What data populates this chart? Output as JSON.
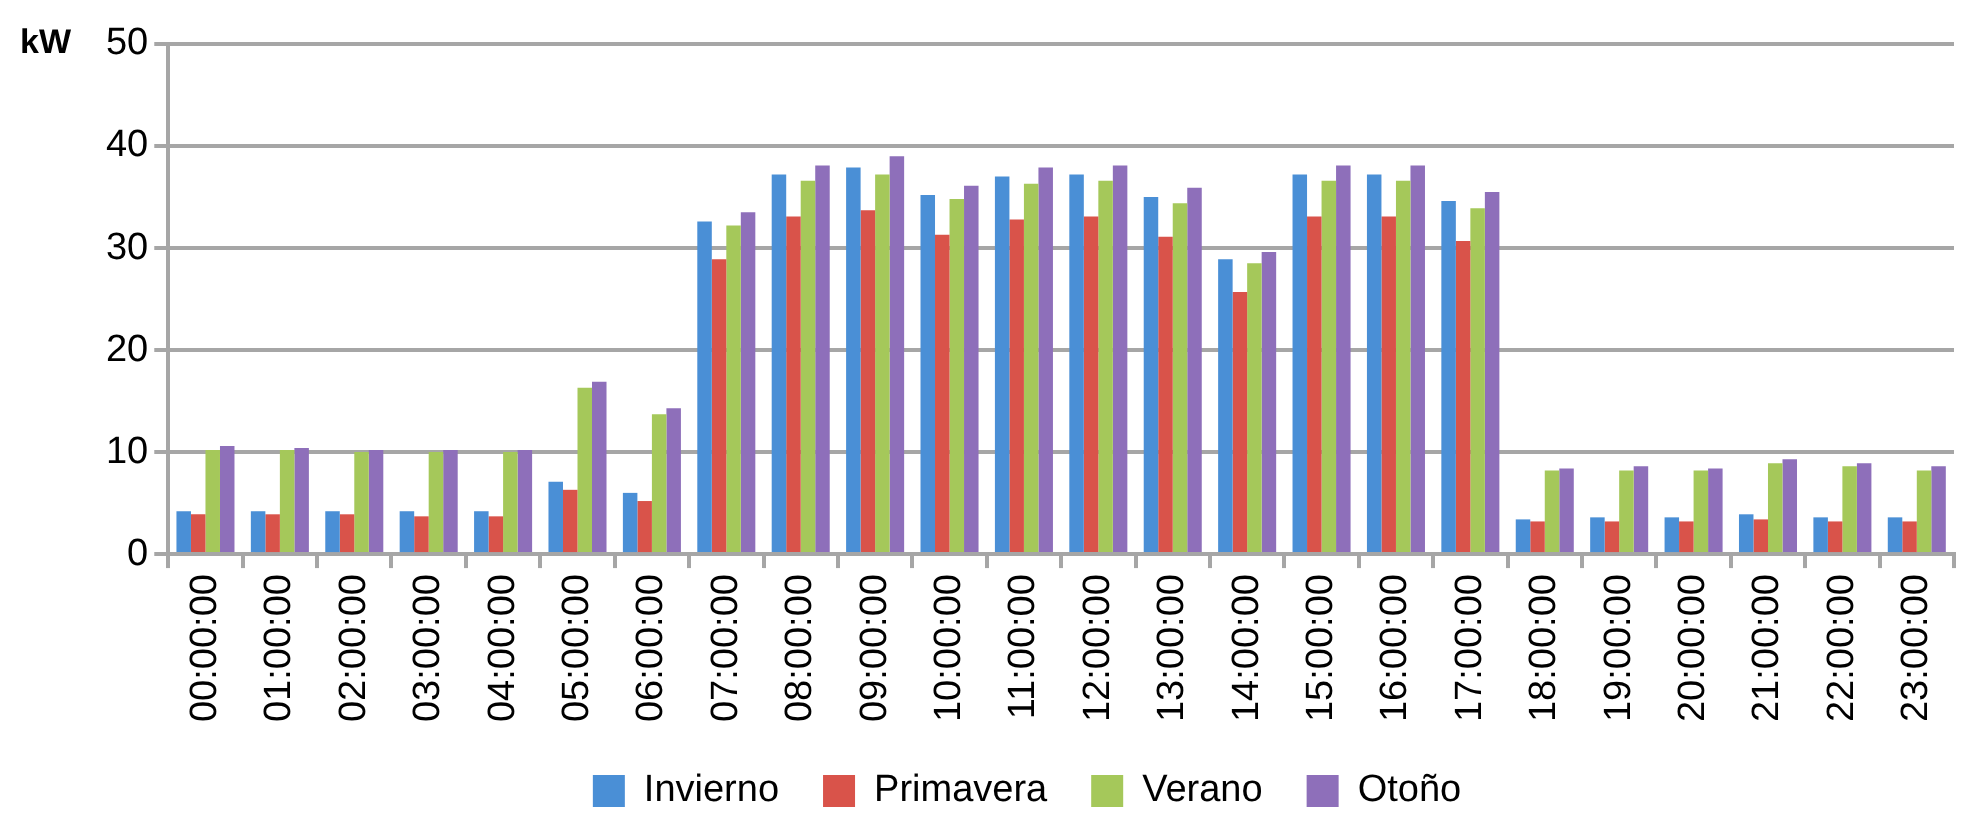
{
  "chart_data": {
    "type": "bar",
    "ylabel": "kW",
    "categories": [
      "00:00:00",
      "01:00:00",
      "02:00:00",
      "03:00:00",
      "04:00:00",
      "05:00:00",
      "06:00:00",
      "07:00:00",
      "08:00:00",
      "09:00:00",
      "10:00:00",
      "11:00:00",
      "12:00:00",
      "13:00:00",
      "14:00:00",
      "15:00:00",
      "16:00:00",
      "17:00:00",
      "18:00:00",
      "19:00:00",
      "20:00:00",
      "21:00:00",
      "22:00:00",
      "23:00:00"
    ],
    "series": [
      {
        "name": "Invierno",
        "color": "#4a8fd6",
        "values": [
          4.2,
          4.2,
          4.2,
          4.2,
          4.2,
          7.1,
          6.0,
          32.6,
          37.2,
          37.9,
          35.2,
          37.0,
          37.2,
          35.0,
          28.9,
          37.2,
          37.2,
          34.6,
          3.4,
          3.6,
          3.6,
          3.9,
          3.6,
          3.6
        ]
      },
      {
        "name": "Primavera",
        "color": "#d9534a",
        "values": [
          3.9,
          3.9,
          3.9,
          3.7,
          3.7,
          6.3,
          5.2,
          28.9,
          33.1,
          33.7,
          31.3,
          32.8,
          33.1,
          31.1,
          25.7,
          33.1,
          33.1,
          30.7,
          3.2,
          3.2,
          3.2,
          3.4,
          3.2,
          3.2
        ]
      },
      {
        "name": "Verano",
        "color": "#a5c85a",
        "values": [
          10.2,
          10.2,
          10.0,
          10.0,
          10.0,
          16.3,
          13.7,
          32.2,
          36.6,
          37.2,
          34.8,
          36.3,
          36.6,
          34.4,
          28.5,
          36.6,
          36.6,
          33.9,
          8.2,
          8.2,
          8.2,
          8.9,
          8.6,
          8.2
        ]
      },
      {
        "name": "Otoño",
        "color": "#8e6fba",
        "values": [
          10.6,
          10.4,
          10.2,
          10.2,
          10.2,
          16.9,
          14.3,
          33.5,
          38.1,
          39.0,
          36.1,
          37.9,
          38.1,
          35.9,
          29.6,
          38.1,
          38.1,
          35.5,
          8.4,
          8.6,
          8.4,
          9.3,
          8.9,
          8.6
        ]
      }
    ],
    "ylim": [
      0,
      50
    ],
    "yticks": [
      0,
      10,
      20,
      30,
      40,
      50
    ],
    "grid": "y",
    "legend": "bottom"
  }
}
